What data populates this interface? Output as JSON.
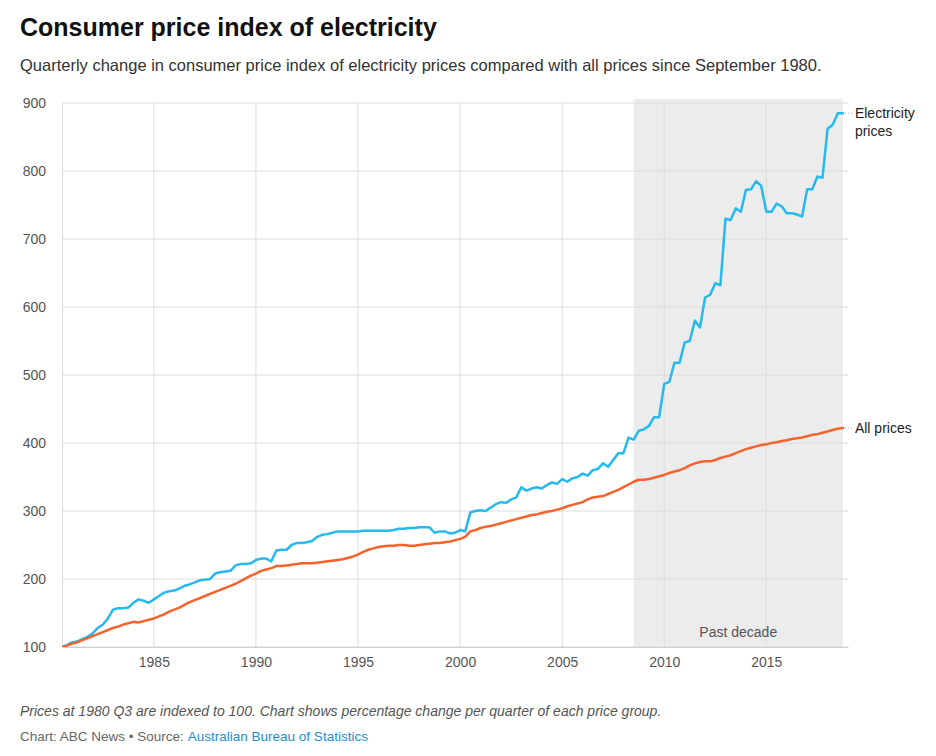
{
  "chart_data": {
    "type": "line",
    "title": "Consumer price index of electricity",
    "subtitle": "Quarterly change in consumer price index of electricity prices compared with all prices since September 1980.",
    "note": "Prices at 1980 Q3 are indexed to 100. Chart shows percentage change per quarter of each price group.",
    "credit": "Chart: ABC News • Source:",
    "source": "Australian Bureau of Statistics",
    "grid": true,
    "xlim": [
      1980.5,
      2019
    ],
    "xticks": [
      1985,
      1990,
      1995,
      2000,
      2005,
      2010,
      2015
    ],
    "ylim": [
      100,
      900
    ],
    "yticks": [
      100,
      200,
      300,
      400,
      500,
      600,
      700,
      800,
      900
    ],
    "shaded_region": {
      "label": "Past decade",
      "start": 2008.5,
      "end": 2018.75
    },
    "x": [
      1980.5,
      1980.75,
      1981,
      1981.25,
      1981.5,
      1981.75,
      1982,
      1982.25,
      1982.5,
      1982.75,
      1983,
      1983.25,
      1983.5,
      1983.75,
      1984,
      1984.25,
      1984.5,
      1984.75,
      1985,
      1985.25,
      1985.5,
      1985.75,
      1986,
      1986.25,
      1986.5,
      1986.75,
      1987,
      1987.25,
      1987.5,
      1987.75,
      1988,
      1988.25,
      1988.5,
      1988.75,
      1989,
      1989.25,
      1989.5,
      1989.75,
      1990,
      1990.25,
      1990.5,
      1990.75,
      1991,
      1991.25,
      1991.5,
      1991.75,
      1992,
      1992.25,
      1992.5,
      1992.75,
      1993,
      1993.25,
      1993.5,
      1993.75,
      1994,
      1994.25,
      1994.5,
      1994.75,
      1995,
      1995.25,
      1995.5,
      1995.75,
      1996,
      1996.25,
      1996.5,
      1996.75,
      1997,
      1997.25,
      1997.5,
      1997.75,
      1998,
      1998.25,
      1998.5,
      1998.75,
      1999,
      1999.25,
      1999.5,
      1999.75,
      2000,
      2000.25,
      2000.5,
      2000.75,
      2001,
      2001.25,
      2001.5,
      2001.75,
      2002,
      2002.25,
      2002.5,
      2002.75,
      2003,
      2003.25,
      2003.5,
      2003.75,
      2004,
      2004.25,
      2004.5,
      2004.75,
      2005,
      2005.25,
      2005.5,
      2005.75,
      2006,
      2006.25,
      2006.5,
      2006.75,
      2007,
      2007.25,
      2007.5,
      2007.75,
      2008,
      2008.25,
      2008.5,
      2008.75,
      2009,
      2009.25,
      2009.5,
      2009.75,
      2010,
      2010.25,
      2010.5,
      2010.75,
      2011,
      2011.25,
      2011.5,
      2011.75,
      2012,
      2012.25,
      2012.5,
      2012.75,
      2013,
      2013.25,
      2013.5,
      2013.75,
      2014,
      2014.25,
      2014.5,
      2014.75,
      2015,
      2015.25,
      2015.5,
      2015.75,
      2016,
      2016.25,
      2016.5,
      2016.75,
      2017,
      2017.25,
      2017.5,
      2017.75,
      2018,
      2018.25,
      2018.5,
      2018.75
    ],
    "series": [
      {
        "name": "Electricity prices",
        "color": "#25b9ee",
        "values": [
          100,
          103,
          107,
          108,
          112,
          115,
          120,
          128,
          133,
          142,
          155,
          157,
          157,
          158,
          165,
          170,
          168,
          165,
          170,
          175,
          180,
          182,
          183,
          186,
          190,
          192,
          195,
          198,
          199,
          200,
          208,
          210,
          211,
          212,
          220,
          222,
          222,
          223,
          228,
          230,
          230,
          226,
          242,
          243,
          243,
          250,
          253,
          253,
          254,
          256,
          262,
          265,
          266,
          268,
          270,
          270,
          270,
          270,
          270,
          271,
          271,
          271,
          271,
          271,
          271,
          272,
          274,
          274,
          275,
          275,
          276,
          276,
          276,
          268,
          270,
          270,
          267,
          268,
          272,
          270,
          298,
          300,
          301,
          300,
          305,
          310,
          313,
          312,
          317,
          320,
          335,
          330,
          333,
          335,
          333,
          338,
          342,
          340,
          347,
          343,
          348,
          350,
          355,
          352,
          360,
          362,
          370,
          365,
          375,
          385,
          385,
          408,
          405,
          418,
          420,
          425,
          438,
          438,
          487,
          490,
          518,
          518,
          548,
          550,
          580,
          570,
          614,
          618,
          635,
          632,
          730,
          728,
          745,
          740,
          772,
          773,
          785,
          778,
          740,
          740,
          752,
          748,
          738,
          738,
          736,
          733,
          773,
          773,
          792,
          790,
          862,
          868,
          885,
          885
        ]
      },
      {
        "name": "All prices",
        "color": "#f3632b",
        "values": [
          100,
          102,
          105,
          107,
          110,
          113,
          116,
          119,
          122,
          125,
          128,
          130,
          133,
          135,
          137,
          136,
          138,
          140,
          142,
          145,
          148,
          152,
          155,
          158,
          162,
          166,
          169,
          172,
          175,
          178,
          181,
          184,
          187,
          190,
          193,
          197,
          201,
          205,
          208,
          212,
          214,
          216,
          219,
          219,
          220,
          221,
          222,
          223,
          223,
          223,
          224,
          225,
          226,
          227,
          228,
          229,
          231,
          233,
          236,
          240,
          243,
          245,
          247,
          248,
          249,
          249,
          250,
          250,
          249,
          249,
          250,
          251,
          252,
          253,
          253,
          254,
          255,
          257,
          259,
          262,
          270,
          272,
          275,
          277,
          278,
          280,
          282,
          284,
          286,
          288,
          290,
          292,
          294,
          295,
          297,
          299,
          300,
          302,
          304,
          307,
          309,
          311,
          313,
          317,
          320,
          321,
          322,
          325,
          328,
          331,
          335,
          339,
          343,
          346,
          346,
          347,
          349,
          351,
          353,
          356,
          358,
          360,
          363,
          367,
          370,
          372,
          373,
          373,
          375,
          378,
          380,
          382,
          385,
          388,
          391,
          393,
          395,
          397,
          398,
          400,
          401,
          403,
          404,
          406,
          407,
          408,
          410,
          412,
          413,
          415,
          417,
          419,
          421,
          422
        ]
      }
    ]
  }
}
